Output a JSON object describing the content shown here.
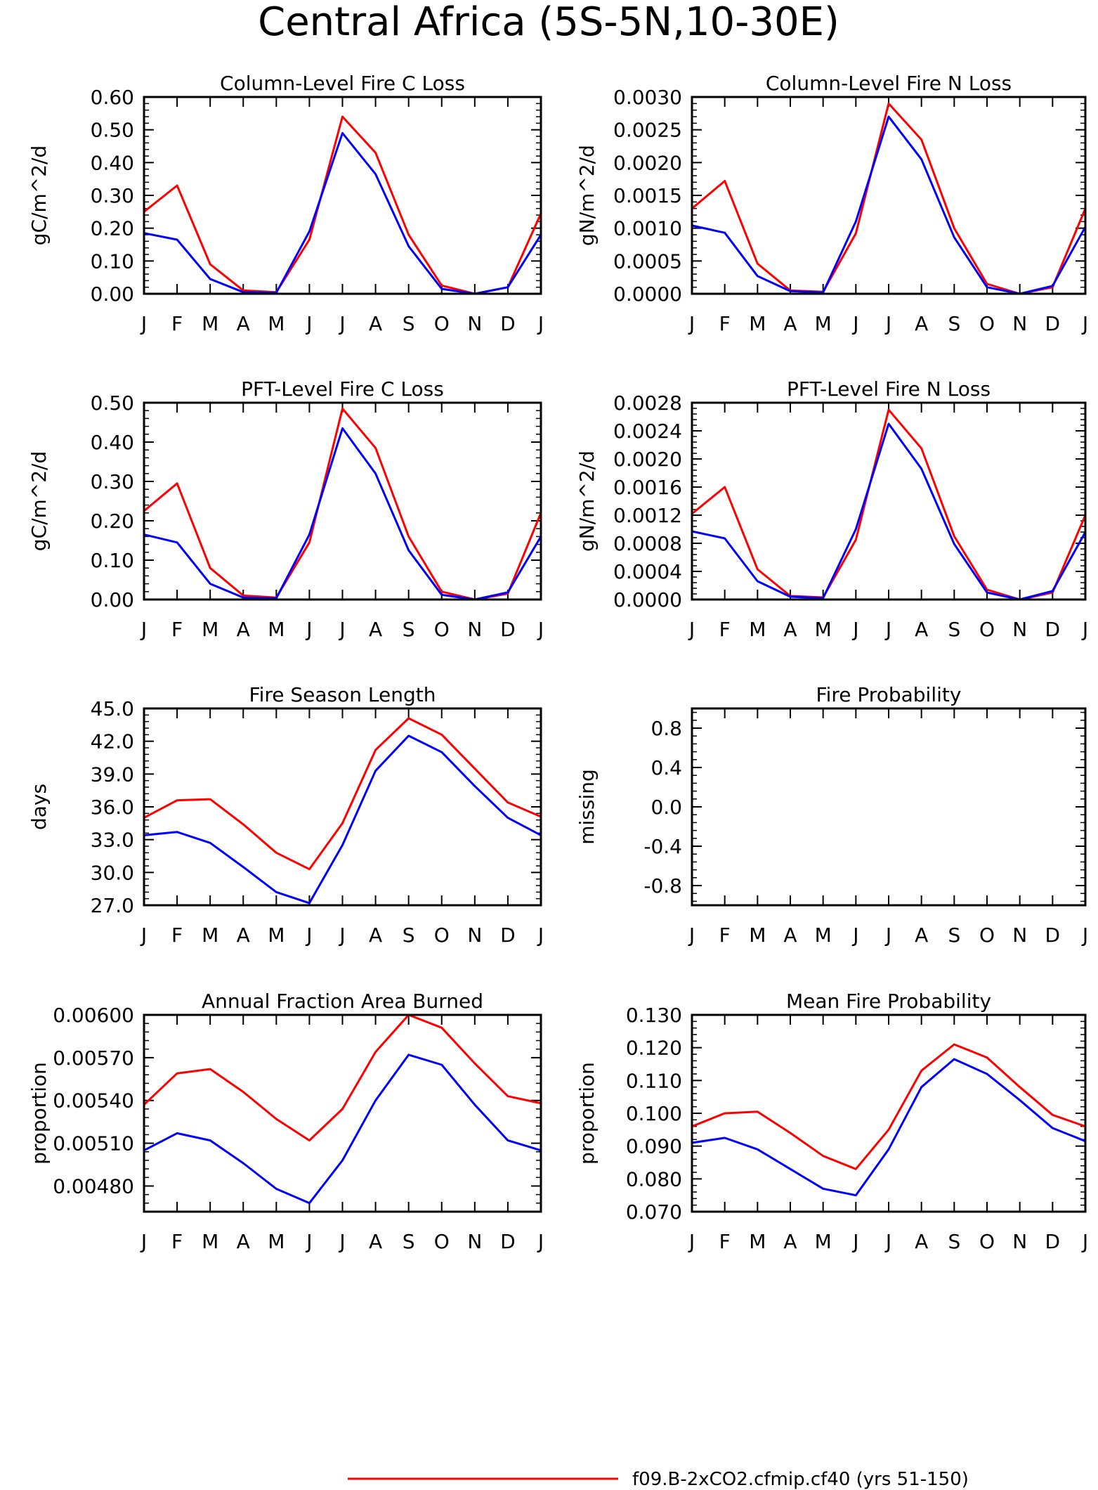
{
  "page": {
    "title": "Central Africa (5S-5N,10-30E)",
    "legend": [
      {
        "label": "f09.B-2xCO2.cfmip.cf40 (yrs 51-150)",
        "color": "#ff0000"
      }
    ]
  },
  "months": [
    "J",
    "F",
    "M",
    "A",
    "M",
    "J",
    "J",
    "A",
    "S",
    "O",
    "N",
    "D",
    "J"
  ],
  "colors": {
    "red": "#ff0000",
    "blue": "#0000ff"
  },
  "chart_data": [
    {
      "type": "line",
      "title": "Column-Level Fire C Loss",
      "ylabel": "gC/m^2/d",
      "ylim": [
        0,
        0.6
      ],
      "yticks": [
        "0.00",
        "0.10",
        "0.20",
        "0.30",
        "0.40",
        "0.50",
        "0.60"
      ],
      "ytick_values": [
        0,
        0.1,
        0.2,
        0.3,
        0.4,
        0.5,
        0.6
      ],
      "series": [
        {
          "color": "red",
          "values": [
            0.25,
            0.33,
            0.09,
            0.01,
            0.005,
            0.165,
            0.54,
            0.43,
            0.18,
            0.025,
            0.0,
            0.02,
            0.245
          ]
        },
        {
          "color": "blue",
          "values": [
            0.185,
            0.165,
            0.045,
            0.005,
            0.003,
            0.19,
            0.49,
            0.365,
            0.145,
            0.015,
            0.0,
            0.02,
            0.18
          ]
        }
      ]
    },
    {
      "type": "line",
      "title": "Column-Level Fire N Loss",
      "ylabel": "gN/m^2/d",
      "ylim": [
        0,
        0.003
      ],
      "yticks": [
        "0.0000",
        "0.0005",
        "0.0010",
        "0.0015",
        "0.0020",
        "0.0025",
        "0.0030"
      ],
      "ytick_values": [
        0,
        0.0005,
        0.001,
        0.0015,
        0.002,
        0.0025,
        0.003
      ],
      "series": [
        {
          "color": "red",
          "values": [
            0.0013,
            0.00172,
            0.00046,
            5e-05,
            3e-05,
            0.00092,
            0.0029,
            0.00235,
            0.001,
            0.00015,
            0.0,
            0.0001,
            0.0013
          ]
        },
        {
          "color": "blue",
          "values": [
            0.00104,
            0.00093,
            0.00027,
            4e-05,
            2e-05,
            0.0011,
            0.0027,
            0.00205,
            0.00086,
            0.0001,
            0.0,
            0.00012,
            0.00102
          ]
        }
      ]
    },
    {
      "type": "line",
      "title": "PFT-Level Fire C Loss",
      "ylabel": "gC/m^2/d",
      "ylim": [
        0,
        0.5
      ],
      "yticks": [
        "0.00",
        "0.10",
        "0.20",
        "0.30",
        "0.40",
        "0.50"
      ],
      "ytick_values": [
        0,
        0.1,
        0.2,
        0.3,
        0.4,
        0.5
      ],
      "series": [
        {
          "color": "red",
          "values": [
            0.225,
            0.295,
            0.08,
            0.01,
            0.005,
            0.145,
            0.485,
            0.385,
            0.16,
            0.02,
            0.0,
            0.015,
            0.22
          ]
        },
        {
          "color": "blue",
          "values": [
            0.165,
            0.145,
            0.04,
            0.005,
            0.003,
            0.165,
            0.435,
            0.32,
            0.125,
            0.012,
            0.0,
            0.018,
            0.16
          ]
        }
      ]
    },
    {
      "type": "line",
      "title": "PFT-Level Fire N Loss",
      "ylabel": "gN/m^2/d",
      "ylim": [
        0,
        0.0028
      ],
      "yticks": [
        "0.0000",
        "0.0004",
        "0.0008",
        "0.0012",
        "0.0016",
        "0.0020",
        "0.0024",
        "0.0028"
      ],
      "ytick_values": [
        0,
        0.0004,
        0.0008,
        0.0012,
        0.0016,
        0.002,
        0.0024,
        0.0028
      ],
      "series": [
        {
          "color": "red",
          "values": [
            0.00122,
            0.0016,
            0.00043,
            5e-05,
            3e-05,
            0.00085,
            0.0027,
            0.00215,
            0.0009,
            0.00014,
            0.0,
            0.0001,
            0.0012
          ]
        },
        {
          "color": "blue",
          "values": [
            0.00097,
            0.00087,
            0.00026,
            4e-05,
            2e-05,
            0.001,
            0.0025,
            0.00186,
            0.00079,
            0.0001,
            0.0,
            0.00012,
            0.00096
          ]
        }
      ]
    },
    {
      "type": "line",
      "title": "Fire Season Length",
      "ylabel": "days",
      "ylim": [
        27,
        45
      ],
      "yticks": [
        "27.0",
        "30.0",
        "33.0",
        "36.0",
        "39.0",
        "42.0",
        "45.0"
      ],
      "ytick_values": [
        27,
        30,
        33,
        36,
        39,
        42,
        45
      ],
      "series": [
        {
          "color": "red",
          "values": [
            35.0,
            36.6,
            36.7,
            34.4,
            31.8,
            30.3,
            34.5,
            41.2,
            44.1,
            42.6,
            39.5,
            36.4,
            35.1
          ]
        },
        {
          "color": "blue",
          "values": [
            33.4,
            33.7,
            32.7,
            30.5,
            28.2,
            27.2,
            32.5,
            39.3,
            42.5,
            41.0,
            37.9,
            35.0,
            33.4
          ]
        }
      ]
    },
    {
      "type": "line",
      "title": "Fire Probability",
      "ylabel": "missing",
      "ylim": [
        -1,
        1
      ],
      "yticks": [
        "-0.8",
        "-0.4",
        "0.0",
        "0.4",
        "0.8"
      ],
      "ytick_values": [
        -0.8,
        -0.4,
        0,
        0.4,
        0.8
      ],
      "series": []
    },
    {
      "type": "line",
      "title": "Annual Fraction Area Burned",
      "ylabel": "proportion",
      "ylim": [
        0.00462,
        0.006
      ],
      "yticks": [
        "0.00480",
        "0.00510",
        "0.00540",
        "0.00570",
        "0.00600"
      ],
      "ytick_values": [
        0.0048,
        0.0051,
        0.0054,
        0.0057,
        0.006
      ],
      "series": [
        {
          "color": "red",
          "values": [
            0.00537,
            0.00559,
            0.00562,
            0.00546,
            0.00527,
            0.00512,
            0.00534,
            0.00574,
            0.006,
            0.00591,
            0.00566,
            0.00543,
            0.00538
          ]
        },
        {
          "color": "blue",
          "values": [
            0.00505,
            0.00517,
            0.00512,
            0.00496,
            0.00478,
            0.00468,
            0.00498,
            0.0054,
            0.00572,
            0.00565,
            0.00537,
            0.00512,
            0.00505
          ]
        }
      ]
    },
    {
      "type": "line",
      "title": "Mean Fire Probability",
      "ylabel": "proportion",
      "ylim": [
        0.07,
        0.13
      ],
      "yticks": [
        "0.070",
        "0.080",
        "0.090",
        "0.100",
        "0.110",
        "0.120",
        "0.130"
      ],
      "ytick_values": [
        0.07,
        0.08,
        0.09,
        0.1,
        0.11,
        0.12,
        0.13
      ],
      "series": [
        {
          "color": "red",
          "values": [
            0.096,
            0.1,
            0.1005,
            0.094,
            0.087,
            0.083,
            0.095,
            0.113,
            0.121,
            0.117,
            0.108,
            0.0995,
            0.096
          ]
        },
        {
          "color": "blue",
          "values": [
            0.091,
            0.0925,
            0.089,
            0.083,
            0.077,
            0.075,
            0.089,
            0.108,
            0.1165,
            0.112,
            0.104,
            0.0955,
            0.0915
          ]
        }
      ]
    }
  ]
}
